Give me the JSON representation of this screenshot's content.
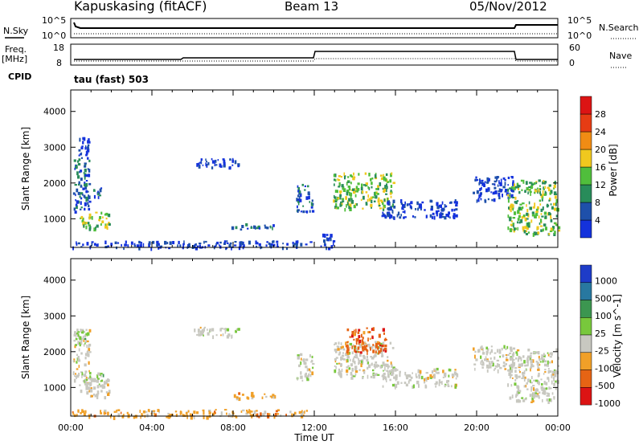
{
  "header": {
    "station": "Kapuskasing (fitACF)",
    "beam": "Beam 13",
    "date": "05/Nov/2012"
  },
  "top_panels": {
    "nsky_label": "N.Sky",
    "nsky_ticks": [
      "10^5",
      "10^0"
    ],
    "nsearch_label": "N.Search",
    "nsearch_ticks": [
      "10^5",
      "10^0"
    ],
    "freq_label": "Freq.",
    "freq_unit": "[MHz]",
    "freq_ticks": [
      "18",
      "8"
    ],
    "nave_label": "Nave",
    "nave_ticks": [
      "60",
      "0"
    ],
    "cpid_label": "CPID",
    "cpid_value": "tau (fast) 503"
  },
  "chart_data": [
    {
      "type": "heatmap",
      "name": "power",
      "ylabel": "Slant Range [km]",
      "yticks": [
        1000,
        2000,
        3000,
        4000
      ],
      "ylim": [
        200,
        4600
      ],
      "xlim_hours": [
        0,
        24
      ],
      "colorbar_label": "Power [dB]",
      "colorbar_ticks": [
        "4",
        "8",
        "12",
        "16",
        "20",
        "24",
        "28"
      ],
      "colorbar_colors": [
        "#1432dc",
        "#1e50aa",
        "#288c5a",
        "#50be3c",
        "#f0c81e",
        "#f08c14",
        "#e63c14",
        "#dc1414"
      ],
      "regions": [
        {
          "t": [
            0.1,
            0.9
          ],
          "r": [
            1200,
            2700
          ],
          "level": 2
        },
        {
          "t": [
            0.3,
            0.9
          ],
          "r": [
            2700,
            3300
          ],
          "level": 1
        },
        {
          "t": [
            0.4,
            1.9
          ],
          "r": [
            750,
            1200
          ],
          "level": 4
        },
        {
          "t": [
            1.1,
            1.5
          ],
          "r": [
            1600,
            1900
          ],
          "level": 2
        },
        {
          "t": [
            6.0,
            8.3
          ],
          "r": [
            2450,
            2700
          ],
          "level": 1
        },
        {
          "t": [
            7.9,
            10.0
          ],
          "r": [
            720,
            880
          ],
          "level": 2
        },
        {
          "t": [
            11.1,
            11.9
          ],
          "r": [
            1200,
            2000
          ],
          "level": 2
        },
        {
          "t": [
            12.9,
            15.9
          ],
          "r": [
            1300,
            2300
          ],
          "level": 4
        },
        {
          "t": [
            15.3,
            19.0
          ],
          "r": [
            1050,
            1550
          ],
          "level": 1
        },
        {
          "t": [
            19.8,
            21.8
          ],
          "r": [
            1500,
            2200
          ],
          "level": 1
        },
        {
          "t": [
            21.5,
            24.0
          ],
          "r": [
            600,
            2100
          ],
          "level": 4
        },
        {
          "t": [
            0.0,
            11.8
          ],
          "r": [
            200,
            400
          ],
          "level": 1
        },
        {
          "t": [
            12.3,
            13.0
          ],
          "r": [
            200,
            600
          ],
          "level": 1
        }
      ]
    },
    {
      "type": "heatmap",
      "name": "velocity",
      "ylabel": "Slant Range [km]",
      "yticks": [
        1000,
        2000,
        3000,
        4000
      ],
      "ylim": [
        200,
        4600
      ],
      "xlim_hours": [
        0,
        24
      ],
      "xticks": [
        "00:00",
        "04:00",
        "08:00",
        "12:00",
        "16:00",
        "20:00",
        "00:00"
      ],
      "xlabel": "Time UT",
      "colorbar_label": "Velocity [m s^-1]",
      "colorbar_ticks": [
        "1000",
        "500",
        "100",
        "25",
        "-25",
        "-100",
        "-500",
        "-1000"
      ],
      "colorbar_colors": [
        "#1e3cc8",
        "#2878a0",
        "#3c9650",
        "#78c83c",
        "#c8c8c0",
        "#f0a028",
        "#e66414",
        "#dc1414"
      ],
      "regions": [
        {
          "t": [
            0.1,
            0.9
          ],
          "r": [
            1200,
            2700
          ],
          "color": 4
        },
        {
          "t": [
            0.2,
            0.8
          ],
          "r": [
            2200,
            2600
          ],
          "color": 3
        },
        {
          "t": [
            0.4,
            1.9
          ],
          "r": [
            750,
            1350
          ],
          "color": 4
        },
        {
          "t": [
            0.9,
            1.6
          ],
          "r": [
            1200,
            1450
          ],
          "color": 3
        },
        {
          "t": [
            6.0,
            8.3
          ],
          "r": [
            2450,
            2700
          ],
          "color": 4
        },
        {
          "t": [
            7.9,
            10.0
          ],
          "r": [
            720,
            880
          ],
          "color": 5
        },
        {
          "t": [
            11.1,
            11.9
          ],
          "r": [
            1200,
            2000
          ],
          "color": 4
        },
        {
          "t": [
            12.9,
            15.9
          ],
          "r": [
            1300,
            2300
          ],
          "color": 4
        },
        {
          "t": [
            13.5,
            15.5
          ],
          "r": [
            2000,
            2700
          ],
          "color": 6
        },
        {
          "t": [
            15.3,
            19.0
          ],
          "r": [
            1050,
            1550
          ],
          "color": 4
        },
        {
          "t": [
            19.8,
            21.8
          ],
          "r": [
            1500,
            2200
          ],
          "color": 4
        },
        {
          "t": [
            21.5,
            24.0
          ],
          "r": [
            600,
            2100
          ],
          "color": 4
        },
        {
          "t": [
            0.0,
            11.8
          ],
          "r": [
            200,
            400
          ],
          "color": 5
        }
      ]
    }
  ]
}
